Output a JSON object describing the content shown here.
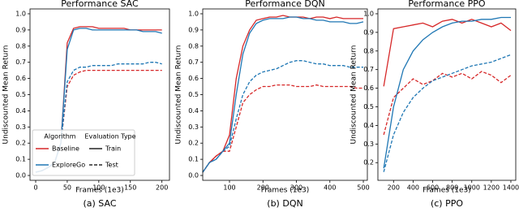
{
  "legend": {
    "algorithm_title": "Algorithm",
    "evaluation_title": "Evaluation Type",
    "algorithms": [
      {
        "name": "Baseline",
        "color": "#d62728"
      },
      {
        "name": "ExploreGo",
        "color": "#1f77b4"
      }
    ],
    "evaluations": [
      {
        "name": "Train",
        "style": "solid"
      },
      {
        "name": "Test",
        "style": "dashed"
      }
    ]
  },
  "chart_data": [
    {
      "type": "line",
      "title": "Performance SAC",
      "xlabel": "Frames (1e3)",
      "ylabel": "Undiscounted Mean Return",
      "caption": "(a) SAC",
      "x": [
        0,
        10,
        20,
        30,
        40,
        50,
        60,
        70,
        80,
        90,
        100,
        110,
        120,
        130,
        140,
        150,
        160,
        170,
        180,
        190,
        200
      ],
      "series": [
        [
          [
            0.02,
            0.03,
            0.05,
            0.08,
            0.2,
            0.82,
            0.91,
            0.92,
            0.92,
            0.92,
            0.91,
            0.91,
            0.91,
            0.91,
            0.91,
            0.9,
            0.9,
            0.9,
            0.9,
            0.9,
            0.9
          ],
          [
            0.02,
            0.03,
            0.05,
            0.08,
            0.2,
            0.55,
            0.62,
            0.64,
            0.65,
            0.65,
            0.65,
            0.65,
            0.65,
            0.65,
            0.65,
            0.65,
            0.65,
            0.65,
            0.65,
            0.65,
            0.65
          ]
        ],
        [
          [
            0.02,
            0.03,
            0.05,
            0.08,
            0.2,
            0.78,
            0.9,
            0.91,
            0.91,
            0.9,
            0.9,
            0.9,
            0.9,
            0.9,
            0.9,
            0.9,
            0.9,
            0.89,
            0.89,
            0.89,
            0.88
          ],
          [
            0.02,
            0.03,
            0.05,
            0.08,
            0.2,
            0.58,
            0.65,
            0.67,
            0.67,
            0.68,
            0.68,
            0.68,
            0.68,
            0.69,
            0.69,
            0.69,
            0.69,
            0.69,
            0.7,
            0.7,
            0.69
          ]
        ]
      ],
      "xlim": [
        -9,
        212
      ],
      "ylim": [
        -0.03,
        1.03
      ],
      "xticks": [
        0,
        50,
        100,
        150,
        200
      ],
      "yticks": [
        {
          "value": 0,
          "label": "0.0"
        },
        0.1,
        0.2,
        0.3,
        0.4,
        0.5,
        0.6,
        0.7,
        0.8,
        0.9,
        {
          "value": 1,
          "label": "1.0"
        }
      ]
    },
    {
      "type": "line",
      "title": "Performance DQN",
      "xlabel": "Frames (1e3)",
      "ylabel": "Undiscounted Mean Return",
      "caption": "(b) DQN",
      "x": [
        20,
        40,
        60,
        80,
        100,
        120,
        140,
        160,
        180,
        200,
        220,
        240,
        260,
        280,
        300,
        320,
        340,
        360,
        380,
        400,
        420,
        440,
        460,
        480,
        500
      ],
      "series": [
        [
          [
            0.02,
            0.08,
            0.12,
            0.15,
            0.25,
            0.6,
            0.8,
            0.9,
            0.96,
            0.97,
            0.98,
            0.98,
            0.99,
            0.98,
            0.98,
            0.98,
            0.97,
            0.98,
            0.98,
            0.97,
            0.98,
            0.97,
            0.97,
            0.97,
            0.97
          ],
          [
            0.02,
            0.08,
            0.12,
            0.15,
            0.15,
            0.3,
            0.45,
            0.5,
            0.53,
            0.55,
            0.55,
            0.56,
            0.56,
            0.56,
            0.55,
            0.55,
            0.55,
            0.56,
            0.55,
            0.55,
            0.55,
            0.55,
            0.55,
            0.54,
            0.54
          ]
        ],
        [
          [
            0.02,
            0.08,
            0.1,
            0.15,
            0.2,
            0.5,
            0.75,
            0.88,
            0.94,
            0.96,
            0.97,
            0.97,
            0.97,
            0.98,
            0.98,
            0.97,
            0.97,
            0.96,
            0.96,
            0.95,
            0.95,
            0.95,
            0.94,
            0.94,
            0.95
          ],
          [
            0.02,
            0.08,
            0.1,
            0.15,
            0.18,
            0.35,
            0.5,
            0.58,
            0.62,
            0.64,
            0.65,
            0.66,
            0.68,
            0.7,
            0.71,
            0.71,
            0.7,
            0.69,
            0.69,
            0.68,
            0.68,
            0.68,
            0.67,
            0.67,
            0.67
          ]
        ]
      ],
      "xlim": [
        20,
        512
      ],
      "ylim": [
        -0.03,
        1.03
      ],
      "xticks": [
        100,
        200,
        300,
        400,
        500
      ],
      "yticks": [
        {
          "value": 0,
          "label": "0.0"
        },
        0.1,
        0.2,
        0.3,
        0.4,
        0.5,
        0.6,
        0.7,
        0.8,
        0.9,
        {
          "value": 1,
          "label": "1.0"
        }
      ]
    },
    {
      "type": "line",
      "title": "Performance PPO",
      "xlabel": "Frames (1e3)",
      "ylabel": "Undiscounted Mean Return",
      "caption": "(c) PPO",
      "x": [
        100,
        200,
        300,
        400,
        500,
        600,
        700,
        800,
        900,
        1000,
        1100,
        1200,
        1300,
        1400
      ],
      "series": [
        [
          [
            0.61,
            0.92,
            0.93,
            0.94,
            0.95,
            0.93,
            0.96,
            0.97,
            0.95,
            0.97,
            0.95,
            0.93,
            0.95,
            0.91
          ],
          [
            0.35,
            0.55,
            0.6,
            0.65,
            0.62,
            0.64,
            0.68,
            0.66,
            0.68,
            0.65,
            0.69,
            0.67,
            0.63,
            0.67
          ]
        ],
        [
          [
            0.17,
            0.5,
            0.7,
            0.8,
            0.86,
            0.9,
            0.93,
            0.95,
            0.96,
            0.96,
            0.97,
            0.97,
            0.98,
            0.98
          ],
          [
            0.15,
            0.35,
            0.47,
            0.55,
            0.6,
            0.64,
            0.66,
            0.68,
            0.7,
            0.72,
            0.73,
            0.74,
            0.76,
            0.78
          ]
        ]
      ],
      "xlim": [
        40,
        1450
      ],
      "ylim": [
        0.105,
        1.026
      ],
      "xticks": [
        200,
        400,
        600,
        800,
        1000,
        1200,
        1400
      ],
      "yticks": [
        0.2,
        0.3,
        0.4,
        0.5,
        0.6,
        0.7,
        0.8,
        0.9,
        {
          "value": 1,
          "label": "1.0"
        }
      ]
    }
  ]
}
